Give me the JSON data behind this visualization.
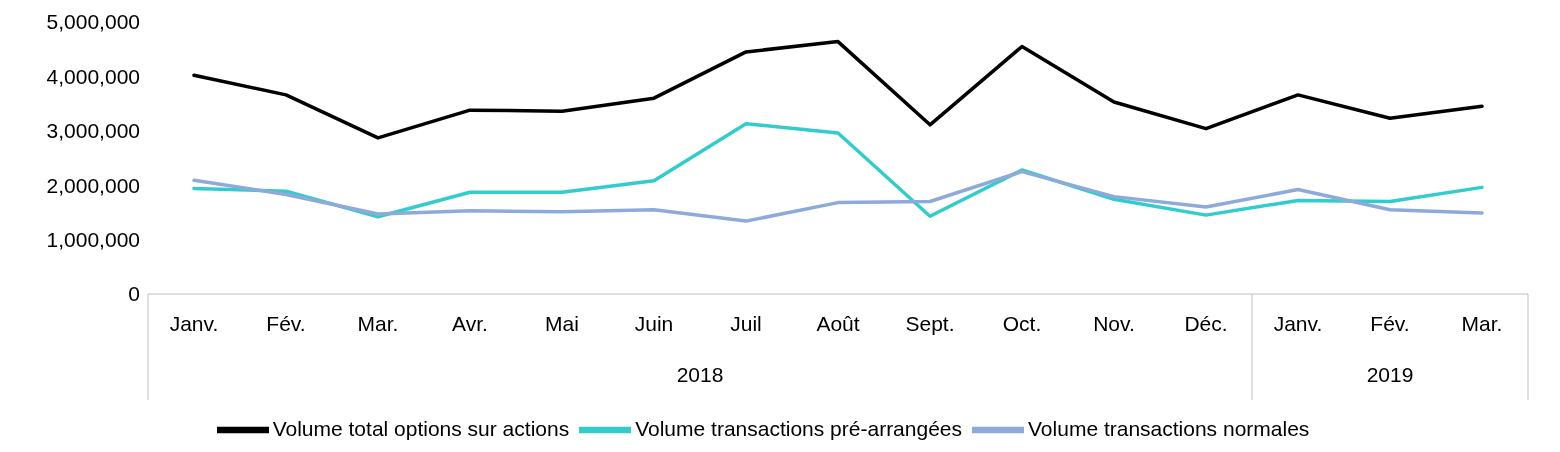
{
  "chart_data": {
    "type": "line",
    "categories": [
      "Janv.",
      "Fév.",
      "Mar.",
      "Avr.",
      "Mai",
      "Juin",
      "Juil",
      "Août",
      "Sept.",
      "Oct.",
      "Nov.",
      "Déc.",
      "Janv.",
      "Fév.",
      "Mar."
    ],
    "series": [
      {
        "name": "Volume total options sur actions",
        "color": "#000000",
        "values": [
          4020000,
          3660000,
          2870000,
          3380000,
          3360000,
          3600000,
          4450000,
          4640000,
          3110000,
          4550000,
          3530000,
          3040000,
          3660000,
          3230000,
          3450000
        ]
      },
      {
        "name": "Volume transactions pré-arrangées",
        "color": "#33cccc",
        "values": [
          1940000,
          1890000,
          1420000,
          1870000,
          1870000,
          2080000,
          3130000,
          2960000,
          1430000,
          2280000,
          1740000,
          1450000,
          1720000,
          1700000,
          1960000
        ]
      },
      {
        "name": "Volume transactions normales",
        "color": "#8eaadb",
        "values": [
          2090000,
          1830000,
          1470000,
          1530000,
          1510000,
          1550000,
          1340000,
          1680000,
          1700000,
          2250000,
          1790000,
          1600000,
          1920000,
          1550000,
          1490000
        ]
      }
    ],
    "ylim": [
      0,
      5000000
    ],
    "yticks": [
      {
        "value": 0,
        "label": "0"
      },
      {
        "value": 1000000,
        "label": "1,000,000"
      },
      {
        "value": 2000000,
        "label": "2,000,000"
      },
      {
        "value": 3000000,
        "label": "3,000,000"
      },
      {
        "value": 4000000,
        "label": "4,000,000"
      },
      {
        "value": 5000000,
        "label": "5,000,000"
      }
    ],
    "annotations": [
      "2018",
      "2019"
    ],
    "grid": false,
    "legend": "bottom",
    "marker": "none",
    "line_style": "solid"
  }
}
